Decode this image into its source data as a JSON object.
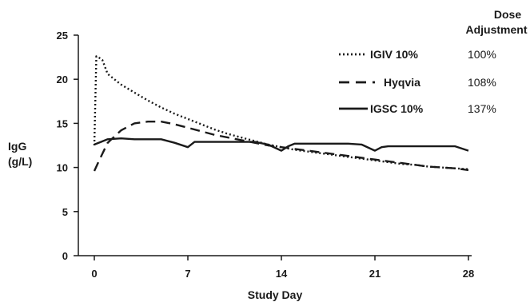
{
  "chart_data": {
    "type": "line",
    "xlabel": "Study Day",
    "ylabel_line1": "IgG",
    "ylabel_line2": "(g/L)",
    "xlim": [
      0,
      28
    ],
    "ylim": [
      0,
      25
    ],
    "xticks": [
      0,
      7,
      14,
      21,
      28
    ],
    "yticks": [
      0,
      5,
      10,
      15,
      20,
      25
    ],
    "legend_title_line1": "Dose",
    "legend_title_line2": "Adjustment",
    "legend_position": "top-right",
    "grid": false,
    "series": [
      {
        "name": "IGIV 10%",
        "dose": "100%",
        "style": "dotted",
        "x": [
          0,
          0.15,
          0.3,
          0.6,
          1,
          2,
          3,
          4,
          5,
          6,
          7,
          8,
          9,
          10,
          11,
          12,
          13,
          14,
          15,
          16,
          17,
          18,
          19,
          20,
          21,
          22,
          23,
          24,
          25,
          26,
          27,
          28
        ],
        "y": [
          12.5,
          22.6,
          22.5,
          22.2,
          20.6,
          19.4,
          18.5,
          17.6,
          16.8,
          16.1,
          15.5,
          14.9,
          14.3,
          13.8,
          13.4,
          13.0,
          12.6,
          12.3,
          12.0,
          11.8,
          11.6,
          11.4,
          11.2,
          11.0,
          10.8,
          10.6,
          10.4,
          10.3,
          10.1,
          10.0,
          9.9,
          9.8
        ]
      },
      {
        "name": "Hyqvia",
        "dose": "108%",
        "style": "dashed",
        "x": [
          0,
          0.3,
          1,
          2,
          3,
          4,
          5,
          6,
          7,
          8,
          9,
          10,
          11,
          12,
          13,
          14,
          15,
          16,
          17,
          18,
          19,
          20,
          21,
          22,
          23,
          24,
          25,
          26,
          27,
          28
        ],
        "y": [
          9.6,
          10.6,
          12.8,
          14.2,
          15.0,
          15.2,
          15.2,
          14.9,
          14.5,
          14.1,
          13.7,
          13.4,
          13.1,
          12.8,
          12.5,
          12.3,
          12.1,
          11.9,
          11.7,
          11.5,
          11.3,
          11.1,
          10.9,
          10.7,
          10.5,
          10.3,
          10.1,
          10.0,
          9.9,
          9.7
        ]
      },
      {
        "name": "IGSC 10%",
        "dose": "137%",
        "style": "solid",
        "x": [
          0,
          1,
          2,
          3,
          4,
          5,
          6,
          7,
          7.5,
          8,
          9,
          10,
          11,
          12,
          13,
          14,
          14.5,
          15,
          16,
          17,
          18,
          19,
          20,
          21,
          21.5,
          22,
          23,
          24,
          25,
          26,
          27,
          28
        ],
        "y": [
          12.6,
          13.2,
          13.3,
          13.2,
          13.2,
          13.2,
          12.8,
          12.3,
          12.9,
          12.9,
          12.9,
          12.9,
          12.9,
          12.9,
          12.6,
          11.9,
          12.4,
          12.7,
          12.7,
          12.7,
          12.7,
          12.7,
          12.6,
          11.9,
          12.3,
          12.4,
          12.4,
          12.4,
          12.4,
          12.4,
          12.4,
          11.9
        ]
      }
    ]
  }
}
